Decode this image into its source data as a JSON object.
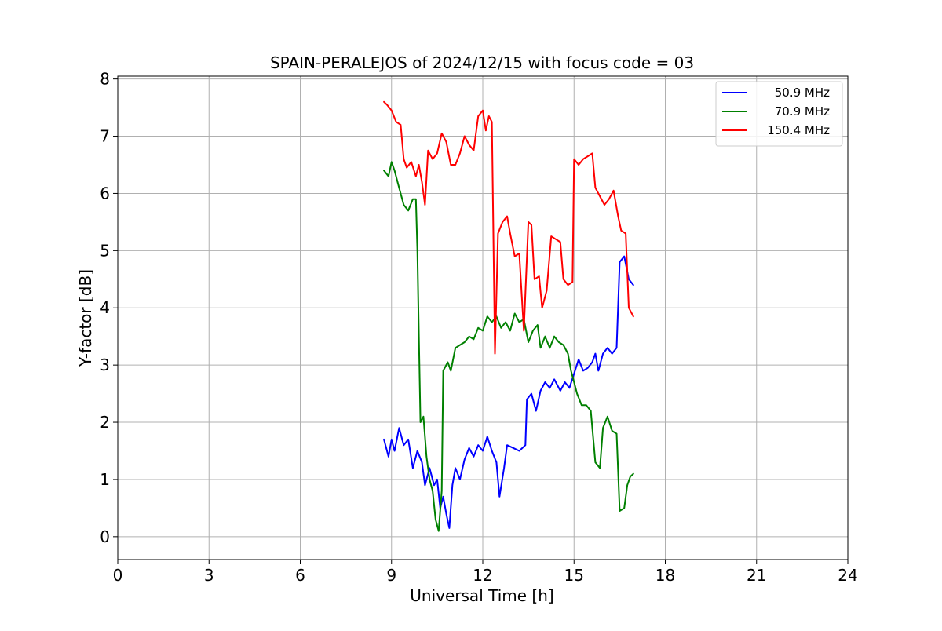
{
  "chart_data": {
    "type": "line",
    "title": "SPAIN-PERALEJOS of 2024/12/15 with focus code = 03",
    "xlabel": "Universal Time [h]",
    "ylabel": "Y-factor [dB]",
    "xlim": [
      0,
      24
    ],
    "ylim": [
      -0.4,
      8.05
    ],
    "xticks": [
      0,
      3,
      6,
      9,
      12,
      15,
      18,
      21,
      24
    ],
    "yticks": [
      0,
      1,
      2,
      3,
      4,
      5,
      6,
      7,
      8
    ],
    "xtick_labels": [
      "0",
      "3",
      "6",
      "9",
      "12",
      "15",
      "18",
      "21",
      "24"
    ],
    "ytick_labels": [
      "0",
      "1",
      "2",
      "3",
      "4",
      "5",
      "6",
      "7",
      "8"
    ],
    "grid": true,
    "legend_position": "top-right",
    "series": [
      {
        "name": "50.9 MHz",
        "color": "#0000ff",
        "points": [
          [
            8.75,
            1.7
          ],
          [
            8.9,
            1.4
          ],
          [
            9.0,
            1.7
          ],
          [
            9.1,
            1.5
          ],
          [
            9.25,
            1.9
          ],
          [
            9.4,
            1.6
          ],
          [
            9.55,
            1.7
          ],
          [
            9.7,
            1.2
          ],
          [
            9.85,
            1.5
          ],
          [
            10.0,
            1.3
          ],
          [
            10.1,
            0.9
          ],
          [
            10.25,
            1.2
          ],
          [
            10.4,
            0.9
          ],
          [
            10.5,
            1.0
          ],
          [
            10.6,
            0.5
          ],
          [
            10.7,
            0.7
          ],
          [
            10.8,
            0.4
          ],
          [
            10.9,
            0.15
          ],
          [
            11.0,
            0.9
          ],
          [
            11.1,
            1.2
          ],
          [
            11.25,
            1.0
          ],
          [
            11.4,
            1.35
          ],
          [
            11.55,
            1.55
          ],
          [
            11.7,
            1.4
          ],
          [
            11.85,
            1.6
          ],
          [
            12.0,
            1.5
          ],
          [
            12.15,
            1.75
          ],
          [
            12.3,
            1.5
          ],
          [
            12.45,
            1.3
          ],
          [
            12.55,
            0.7
          ],
          [
            12.7,
            1.2
          ],
          [
            12.8,
            1.6
          ],
          [
            13.0,
            1.55
          ],
          [
            13.2,
            1.5
          ],
          [
            13.4,
            1.6
          ],
          [
            13.45,
            2.4
          ],
          [
            13.6,
            2.5
          ],
          [
            13.75,
            2.2
          ],
          [
            13.9,
            2.55
          ],
          [
            14.05,
            2.7
          ],
          [
            14.2,
            2.6
          ],
          [
            14.35,
            2.75
          ],
          [
            14.55,
            2.55
          ],
          [
            14.7,
            2.7
          ],
          [
            14.85,
            2.6
          ],
          [
            15.0,
            2.85
          ],
          [
            15.15,
            3.1
          ],
          [
            15.3,
            2.9
          ],
          [
            15.45,
            2.95
          ],
          [
            15.6,
            3.05
          ],
          [
            15.7,
            3.2
          ],
          [
            15.8,
            2.9
          ],
          [
            15.95,
            3.2
          ],
          [
            16.1,
            3.3
          ],
          [
            16.25,
            3.2
          ],
          [
            16.4,
            3.3
          ],
          [
            16.5,
            4.8
          ],
          [
            16.65,
            4.9
          ],
          [
            16.8,
            4.5
          ],
          [
            16.95,
            4.4
          ]
        ]
      },
      {
        "name": "70.9 MHz",
        "color": "#008000",
        "points": [
          [
            8.75,
            6.4
          ],
          [
            8.9,
            6.3
          ],
          [
            9.0,
            6.55
          ],
          [
            9.1,
            6.4
          ],
          [
            9.25,
            6.1
          ],
          [
            9.4,
            5.8
          ],
          [
            9.55,
            5.7
          ],
          [
            9.7,
            5.9
          ],
          [
            9.8,
            5.9
          ],
          [
            9.85,
            5.0
          ],
          [
            9.9,
            3.5
          ],
          [
            9.95,
            2.0
          ],
          [
            10.05,
            2.1
          ],
          [
            10.15,
            1.4
          ],
          [
            10.25,
            1.0
          ],
          [
            10.35,
            0.8
          ],
          [
            10.45,
            0.3
          ],
          [
            10.55,
            0.1
          ],
          [
            10.65,
            0.8
          ],
          [
            10.7,
            2.9
          ],
          [
            10.85,
            3.05
          ],
          [
            10.95,
            2.9
          ],
          [
            11.1,
            3.3
          ],
          [
            11.25,
            3.35
          ],
          [
            11.4,
            3.4
          ],
          [
            11.55,
            3.5
          ],
          [
            11.7,
            3.45
          ],
          [
            11.85,
            3.65
          ],
          [
            12.0,
            3.6
          ],
          [
            12.15,
            3.85
          ],
          [
            12.3,
            3.75
          ],
          [
            12.45,
            3.85
          ],
          [
            12.6,
            3.65
          ],
          [
            12.75,
            3.75
          ],
          [
            12.9,
            3.6
          ],
          [
            13.05,
            3.9
          ],
          [
            13.2,
            3.75
          ],
          [
            13.35,
            3.8
          ],
          [
            13.5,
            3.4
          ],
          [
            13.65,
            3.6
          ],
          [
            13.8,
            3.7
          ],
          [
            13.9,
            3.3
          ],
          [
            14.05,
            3.5
          ],
          [
            14.2,
            3.3
          ],
          [
            14.35,
            3.5
          ],
          [
            14.5,
            3.4
          ],
          [
            14.65,
            3.35
          ],
          [
            14.8,
            3.2
          ],
          [
            14.9,
            2.9
          ],
          [
            15.0,
            2.7
          ],
          [
            15.1,
            2.5
          ],
          [
            15.25,
            2.3
          ],
          [
            15.4,
            2.3
          ],
          [
            15.55,
            2.2
          ],
          [
            15.7,
            1.3
          ],
          [
            15.85,
            1.2
          ],
          [
            15.95,
            1.9
          ],
          [
            16.1,
            2.1
          ],
          [
            16.25,
            1.85
          ],
          [
            16.4,
            1.8
          ],
          [
            16.5,
            0.45
          ],
          [
            16.65,
            0.5
          ],
          [
            16.75,
            0.9
          ],
          [
            16.85,
            1.05
          ],
          [
            16.95,
            1.1
          ]
        ]
      },
      {
        "name": "150.4 MHz",
        "color": "#ff0000",
        "points": [
          [
            8.75,
            7.6
          ],
          [
            8.85,
            7.55
          ],
          [
            9.0,
            7.45
          ],
          [
            9.15,
            7.25
          ],
          [
            9.3,
            7.2
          ],
          [
            9.4,
            6.6
          ],
          [
            9.5,
            6.45
          ],
          [
            9.65,
            6.55
          ],
          [
            9.8,
            6.3
          ],
          [
            9.9,
            6.5
          ],
          [
            10.0,
            6.2
          ],
          [
            10.1,
            5.8
          ],
          [
            10.2,
            6.75
          ],
          [
            10.35,
            6.6
          ],
          [
            10.5,
            6.7
          ],
          [
            10.65,
            7.05
          ],
          [
            10.8,
            6.9
          ],
          [
            10.95,
            6.5
          ],
          [
            11.1,
            6.5
          ],
          [
            11.25,
            6.7
          ],
          [
            11.4,
            7.0
          ],
          [
            11.55,
            6.85
          ],
          [
            11.7,
            6.75
          ],
          [
            11.85,
            7.35
          ],
          [
            12.0,
            7.45
          ],
          [
            12.1,
            7.1
          ],
          [
            12.2,
            7.35
          ],
          [
            12.3,
            7.25
          ],
          [
            12.4,
            3.2
          ],
          [
            12.5,
            5.3
          ],
          [
            12.65,
            5.5
          ],
          [
            12.8,
            5.6
          ],
          [
            12.9,
            5.3
          ],
          [
            13.05,
            4.9
          ],
          [
            13.2,
            4.95
          ],
          [
            13.35,
            3.6
          ],
          [
            13.5,
            5.5
          ],
          [
            13.6,
            5.45
          ],
          [
            13.7,
            4.5
          ],
          [
            13.85,
            4.55
          ],
          [
            13.95,
            4.0
          ],
          [
            14.1,
            4.3
          ],
          [
            14.25,
            5.25
          ],
          [
            14.4,
            5.2
          ],
          [
            14.55,
            5.15
          ],
          [
            14.65,
            4.5
          ],
          [
            14.8,
            4.4
          ],
          [
            14.95,
            4.45
          ],
          [
            15.0,
            6.6
          ],
          [
            15.15,
            6.5
          ],
          [
            15.3,
            6.6
          ],
          [
            15.45,
            6.65
          ],
          [
            15.6,
            6.7
          ],
          [
            15.7,
            6.1
          ],
          [
            15.85,
            5.95
          ],
          [
            16.0,
            5.8
          ],
          [
            16.15,
            5.9
          ],
          [
            16.3,
            6.05
          ],
          [
            16.45,
            5.6
          ],
          [
            16.55,
            5.35
          ],
          [
            16.7,
            5.3
          ],
          [
            16.8,
            4.0
          ],
          [
            16.95,
            3.85
          ]
        ]
      }
    ]
  }
}
